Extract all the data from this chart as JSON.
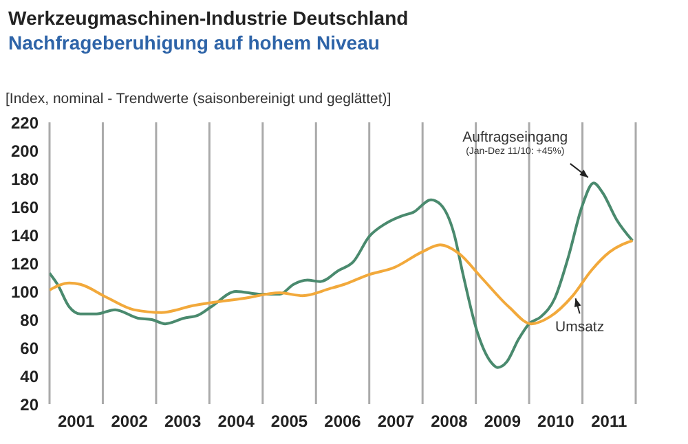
{
  "chart_data": {
    "type": "line",
    "title": "Werkzeugmaschinen-Industrie Deutschland",
    "subtitle": "Nachfrageberuhigung auf hohem Niveau",
    "ylabel": "[Index, nominal - Trendwerte (saisonbereinigt und geglättet)]",
    "xlim": [
      2001,
      2012
    ],
    "ylim": [
      20,
      220
    ],
    "yticks": [
      20,
      40,
      60,
      80,
      100,
      120,
      140,
      160,
      180,
      200,
      220
    ],
    "xticks": [
      {
        "value": 2001,
        "label": null
      },
      {
        "value": 2001.5,
        "label": "2001"
      },
      {
        "value": 2002,
        "label": null
      },
      {
        "value": 2002.5,
        "label": "2002"
      },
      {
        "value": 2003,
        "label": null
      },
      {
        "value": 2003.5,
        "label": "2003"
      },
      {
        "value": 2004,
        "label": null
      },
      {
        "value": 2004.5,
        "label": "2004"
      },
      {
        "value": 2005,
        "label": null
      },
      {
        "value": 2005.5,
        "label": "2005"
      },
      {
        "value": 2006,
        "label": null
      },
      {
        "value": 2006.5,
        "label": "2006"
      },
      {
        "value": 2007,
        "label": null
      },
      {
        "value": 2007.5,
        "label": "2007"
      },
      {
        "value": 2008,
        "label": null
      },
      {
        "value": 2008.5,
        "label": "2008"
      },
      {
        "value": 2009,
        "label": null
      },
      {
        "value": 2009.5,
        "label": "2009"
      },
      {
        "value": 2010,
        "label": null
      },
      {
        "value": 2010.5,
        "label": "2010"
      },
      {
        "value": 2011,
        "label": null
      },
      {
        "value": 2011.5,
        "label": "2011"
      },
      {
        "value": 2012,
        "label": null
      }
    ],
    "grid": "x",
    "marker": "none",
    "line_style": "solid",
    "series": [
      {
        "color": "#4a8a6e",
        "x": [
          2001.0,
          2001.15,
          2001.37,
          2001.58,
          2001.88,
          2002.23,
          2002.66,
          2002.92,
          2003.17,
          2003.52,
          2003.78,
          2004.03,
          2004.5,
          2004.97,
          2005.32,
          2005.58,
          2005.84,
          2006.08,
          2006.43,
          2006.7,
          2007.0,
          2007.3,
          2007.64,
          2007.82,
          2008.16,
          2008.33,
          2008.59,
          2008.76,
          2009.02,
          2009.28,
          2009.41,
          2009.58,
          2009.8,
          2010.0,
          2010.22,
          2010.48,
          2010.74,
          2010.99,
          2011.21,
          2011.38,
          2011.64,
          2011.94
        ],
        "values": [
          113,
          105,
          89,
          84,
          84,
          87,
          81,
          80,
          77,
          81,
          83,
          89,
          100,
          98,
          98,
          105,
          108,
          107,
          115,
          121,
          139,
          148,
          154,
          156,
          165,
          162,
          141,
          112,
          72,
          50,
          46,
          50,
          66,
          77,
          82,
          95,
          125,
          160,
          177,
          170,
          151,
          136
        ]
      },
      {
        "color": "#f2a93b",
        "x": [
          2001.0,
          2001.37,
          2001.58,
          2002.06,
          2002.58,
          2003.1,
          2003.7,
          2004.03,
          2004.63,
          2005.32,
          2005.75,
          2006.26,
          2006.53,
          2007.0,
          2007.47,
          2007.99,
          2008.33,
          2008.68,
          2009.1,
          2009.62,
          2010.04,
          2010.39,
          2010.82,
          2011.17,
          2011.51,
          2011.94
        ],
        "values": [
          101,
          106,
          105,
          96,
          87,
          85,
          90,
          92,
          95,
          99,
          97,
          102,
          105,
          112,
          117,
          128,
          133,
          127,
          110,
          89,
          77,
          82,
          97,
          115,
          128,
          136
        ]
      }
    ],
    "annotations": [
      {
        "text": "Auftragseingang",
        "x": 2011.21,
        "y": 177
      },
      "(Jan-Dez 11/10: +45%)",
      {
        "text": "Umsatz",
        "x": 2010.82,
        "y": 97
      }
    ]
  }
}
